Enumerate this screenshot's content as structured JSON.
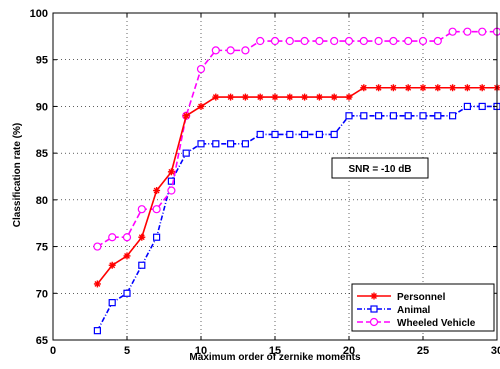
{
  "chart_data": {
    "type": "line",
    "title": "",
    "xlabel": "Maximum order of zernike moments",
    "ylabel": "Classification rate (%)",
    "xlim": [
      0,
      30
    ],
    "ylim": [
      65,
      100
    ],
    "x_ticks": [
      0,
      5,
      10,
      15,
      20,
      25,
      30
    ],
    "y_ticks": [
      65,
      70,
      75,
      80,
      85,
      90,
      95,
      100
    ],
    "grid": true,
    "legend_position": "bottom-right",
    "annotation": "SNR = -10 dB",
    "series": [
      {
        "name": "Personnel",
        "color": "#ff0000",
        "line_style": "solid",
        "marker": "asterisk",
        "x": [
          3,
          4,
          5,
          6,
          7,
          8,
          9,
          10,
          11,
          12,
          13,
          14,
          15,
          16,
          17,
          18,
          19,
          20,
          21,
          22,
          23,
          24,
          25,
          26,
          27,
          28,
          29,
          30
        ],
        "values": [
          71,
          73,
          74,
          76,
          81,
          83,
          89,
          90,
          91,
          91,
          91,
          91,
          91,
          91,
          91,
          91,
          91,
          91,
          92,
          92,
          92,
          92,
          92,
          92,
          92,
          92,
          92,
          92
        ]
      },
      {
        "name": "Animal",
        "color": "#0000ff",
        "line_style": "dashdot",
        "marker": "square",
        "x": [
          3,
          4,
          5,
          6,
          7,
          8,
          9,
          10,
          11,
          12,
          13,
          14,
          15,
          16,
          17,
          18,
          19,
          20,
          21,
          22,
          23,
          24,
          25,
          26,
          27,
          28,
          29,
          30
        ],
        "values": [
          66,
          69,
          70,
          73,
          76,
          82,
          85,
          86,
          86,
          86,
          86,
          87,
          87,
          87,
          87,
          87,
          87,
          89,
          89,
          89,
          89,
          89,
          89,
          89,
          89,
          90,
          90,
          90
        ]
      },
      {
        "name": "Wheeled Vehicle",
        "color": "#ff00ff",
        "line_style": "dashed",
        "marker": "circle",
        "x": [
          3,
          4,
          5,
          6,
          7,
          8,
          9,
          10,
          11,
          12,
          13,
          14,
          15,
          16,
          17,
          18,
          19,
          20,
          21,
          22,
          23,
          24,
          25,
          26,
          27,
          28,
          29,
          30
        ],
        "values": [
          75,
          76,
          76,
          79,
          79,
          81,
          89,
          94,
          96,
          96,
          96,
          97,
          97,
          97,
          97,
          97,
          97,
          97,
          97,
          97,
          97,
          97,
          97,
          97,
          98,
          98,
          98,
          98
        ]
      }
    ]
  }
}
